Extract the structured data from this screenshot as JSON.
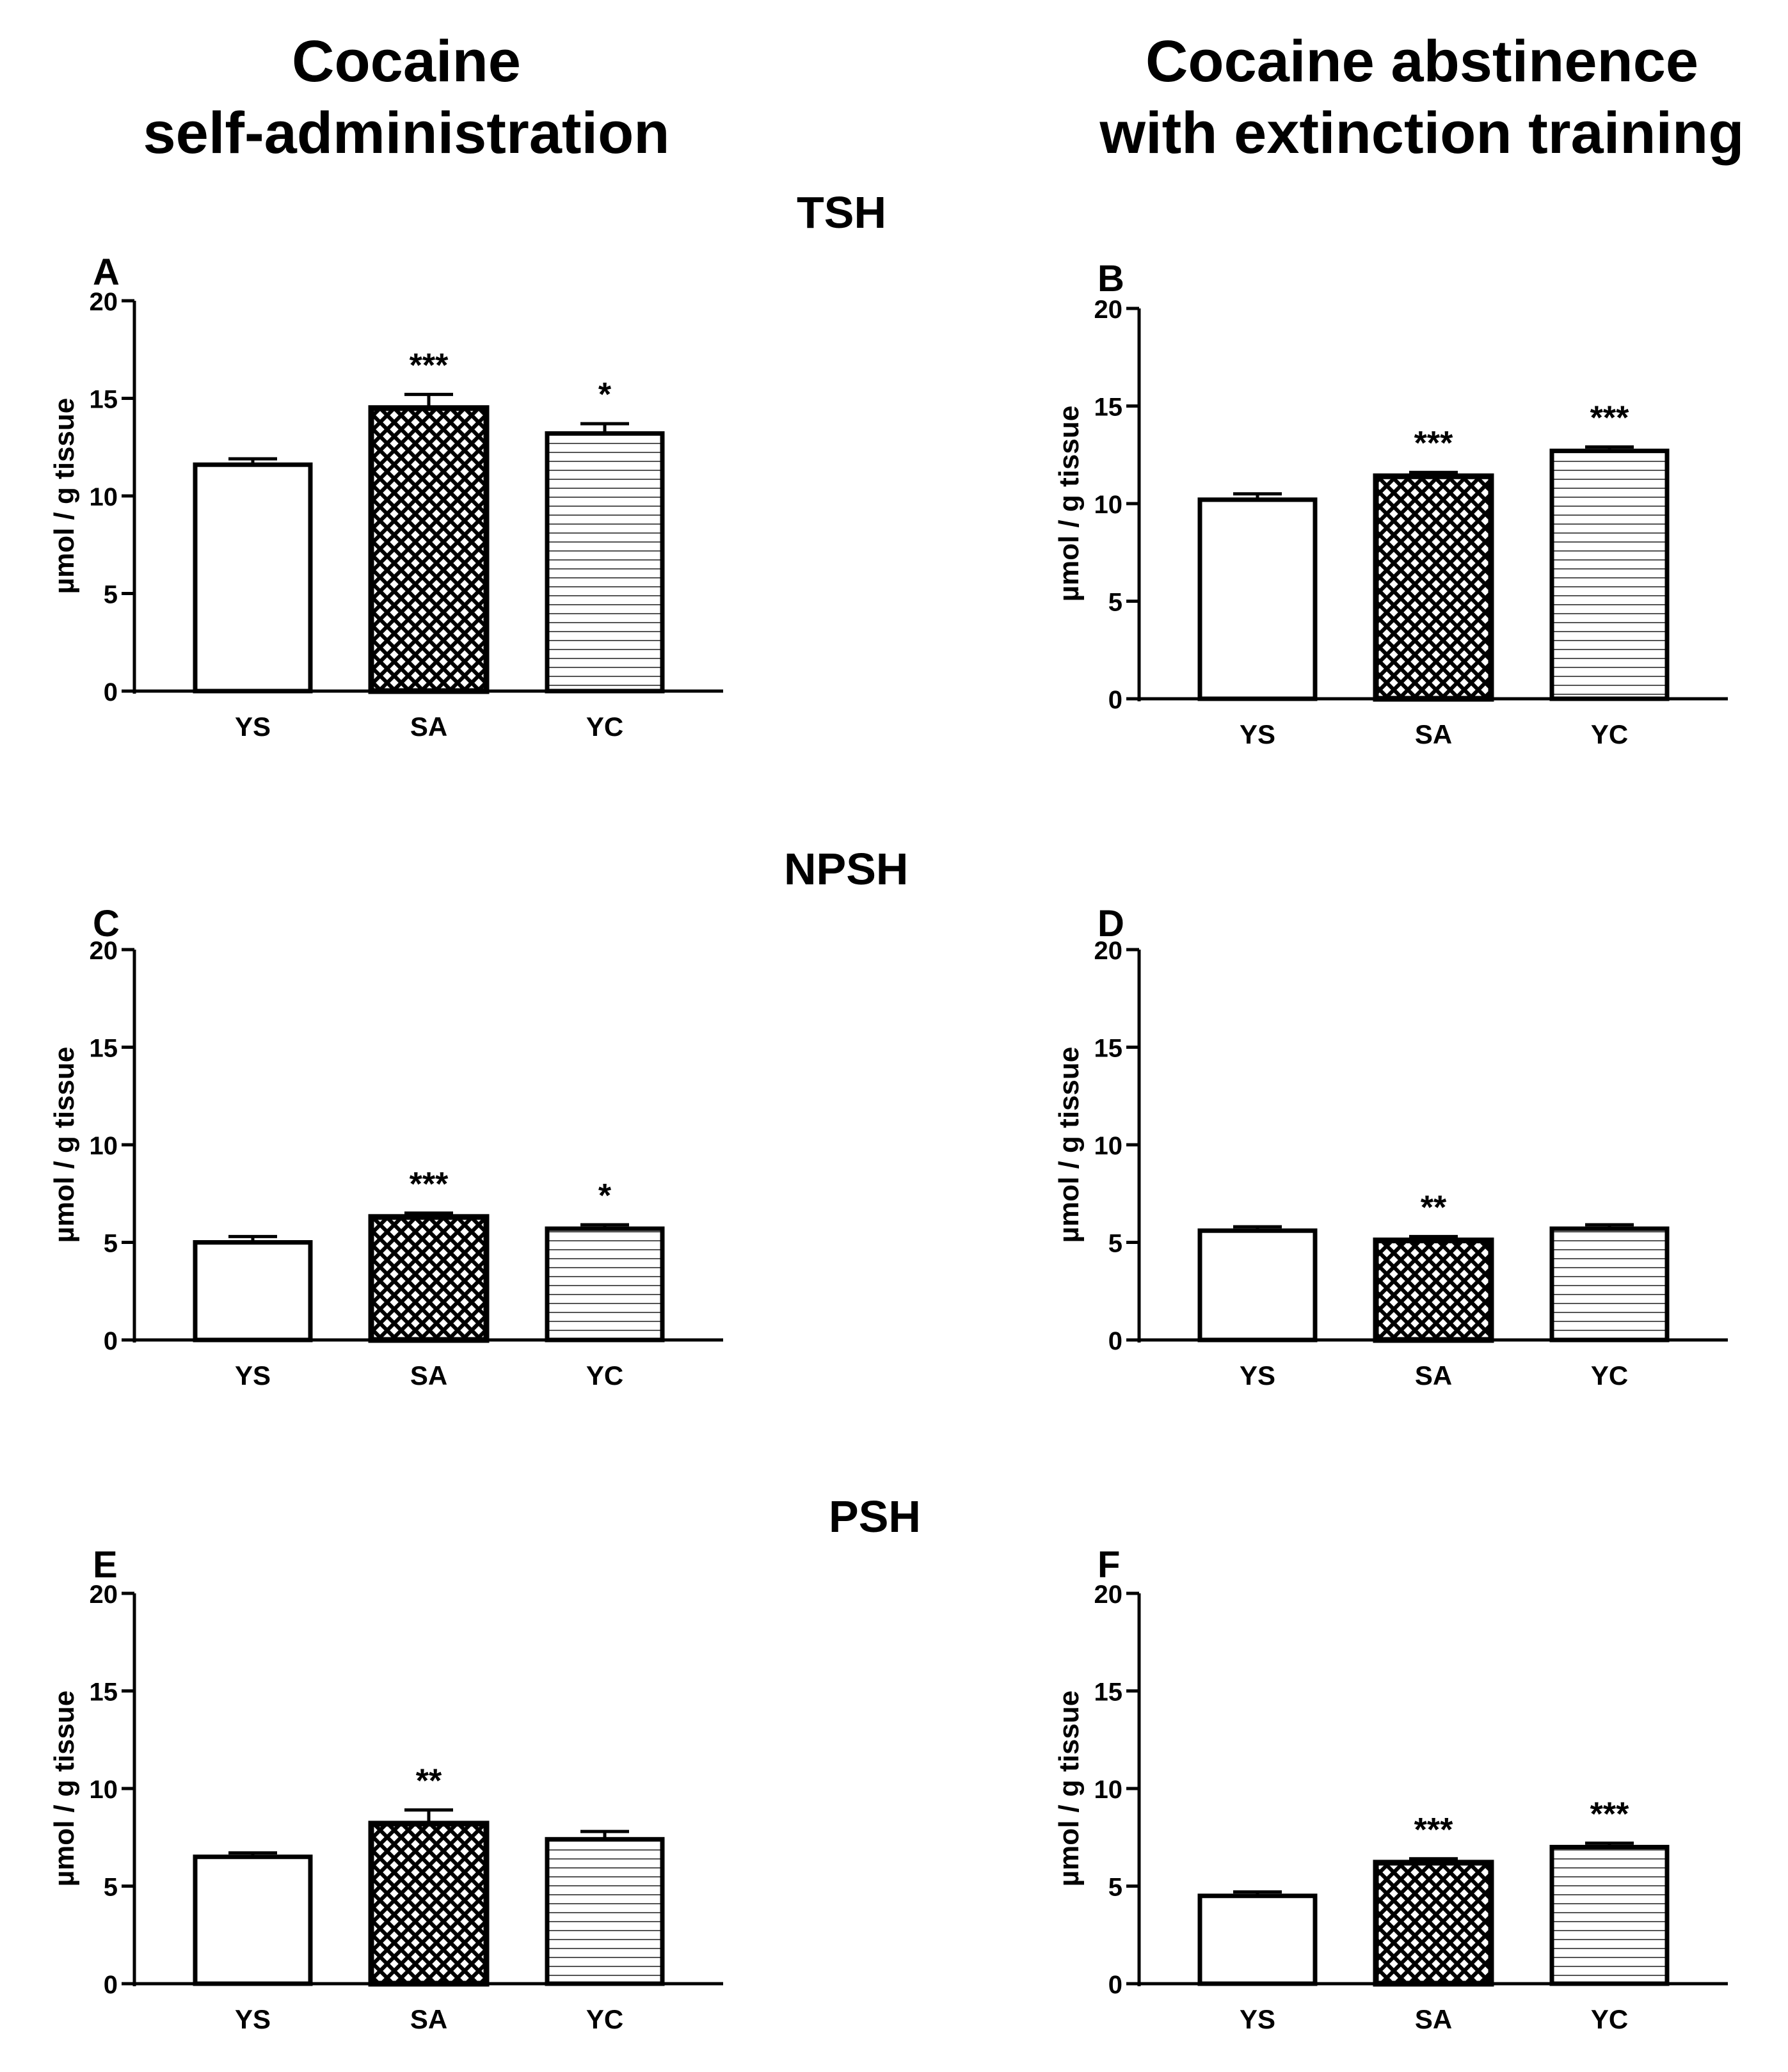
{
  "column_titles": [
    {
      "line1": "Cocaine",
      "line2": "self-administration"
    },
    {
      "line1": "Cocaine abstinence",
      "line2": "with extinction training"
    }
  ],
  "row_titles": [
    "TSH",
    "NPSH",
    "PSH"
  ],
  "chart_data": [
    {
      "type": "bar",
      "panel": "A",
      "row": "TSH",
      "column": "Cocaine self-administration",
      "categories": [
        "YS",
        "SA",
        "YC"
      ],
      "values": [
        11.6,
        14.5,
        13.2
      ],
      "errors": [
        0.3,
        0.7,
        0.5
      ],
      "significance": [
        "",
        "***",
        "*"
      ],
      "ylabel": "µmol / g tissue",
      "ylim": [
        0,
        20
      ],
      "yticks": [
        "0",
        "5",
        "10",
        "15",
        "20"
      ]
    },
    {
      "type": "bar",
      "panel": "B",
      "row": "TSH",
      "column": "Cocaine abstinence with extinction training",
      "categories": [
        "YS",
        "SA",
        "YC"
      ],
      "values": [
        10.2,
        11.4,
        12.7
      ],
      "errors": [
        0.3,
        0.2,
        0.2
      ],
      "significance": [
        "",
        "***",
        "***"
      ],
      "ylabel": "µmol / g tissue",
      "ylim": [
        0,
        20
      ],
      "yticks": [
        "0",
        "5",
        "10",
        "15",
        "20"
      ]
    },
    {
      "type": "bar",
      "panel": "C",
      "row": "NPSH",
      "column": "Cocaine self-administration",
      "categories": [
        "YS",
        "SA",
        "YC"
      ],
      "values": [
        5.0,
        6.3,
        5.7
      ],
      "errors": [
        0.3,
        0.2,
        0.2
      ],
      "significance": [
        "",
        "***",
        "*"
      ],
      "ylabel": "µmol / g tissue",
      "ylim": [
        0,
        20
      ],
      "yticks": [
        "0",
        "5",
        "10",
        "15",
        "20"
      ]
    },
    {
      "type": "bar",
      "panel": "D",
      "row": "NPSH",
      "column": "Cocaine abstinence with extinction training",
      "categories": [
        "YS",
        "SA",
        "YC"
      ],
      "values": [
        5.6,
        5.1,
        5.7
      ],
      "errors": [
        0.2,
        0.2,
        0.2
      ],
      "significance": [
        "",
        "**",
        ""
      ],
      "ylabel": "µmol / g tissue",
      "ylim": [
        0,
        20
      ],
      "yticks": [
        "0",
        "5",
        "10",
        "15",
        "20"
      ]
    },
    {
      "type": "bar",
      "panel": "E",
      "row": "PSH",
      "column": "Cocaine self-administration",
      "categories": [
        "YS",
        "SA",
        "YC"
      ],
      "values": [
        6.5,
        8.2,
        7.4
      ],
      "errors": [
        0.2,
        0.7,
        0.4
      ],
      "significance": [
        "",
        "**",
        ""
      ],
      "ylabel": "µmol / g tissue",
      "ylim": [
        0,
        20
      ],
      "yticks": [
        "0",
        "5",
        "10",
        "15",
        "20"
      ]
    },
    {
      "type": "bar",
      "panel": "F",
      "row": "PSH",
      "column": "Cocaine abstinence with extinction training",
      "categories": [
        "YS",
        "SA",
        "YC"
      ],
      "values": [
        4.5,
        6.2,
        7.0
      ],
      "errors": [
        0.2,
        0.2,
        0.2
      ],
      "significance": [
        "",
        "***",
        "***"
      ],
      "ylabel": "µmol / g tissue",
      "ylim": [
        0,
        20
      ],
      "yticks": [
        "0",
        "5",
        "10",
        "15",
        "20"
      ]
    }
  ]
}
